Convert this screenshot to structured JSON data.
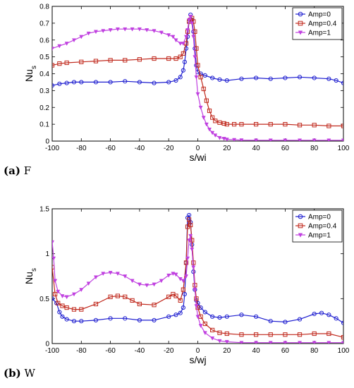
{
  "chart_data": [
    {
      "type": "line",
      "caption_label": "(a)",
      "caption_text": "F",
      "xlabel": "s/wi",
      "ylabel": "Nu",
      "ylabel_sub": "s",
      "xlim": [
        -100,
        100
      ],
      "ylim": [
        0,
        0.8
      ],
      "xticks": [
        -100,
        -80,
        -60,
        -40,
        -20,
        0,
        20,
        40,
        60,
        80,
        100
      ],
      "yticks": [
        0,
        0.1,
        0.2,
        0.3,
        0.4,
        0.5,
        0.6,
        0.7,
        0.8
      ],
      "ytick_labels": [
        "0",
        "0.1",
        "0.2",
        "0.3",
        "0.4",
        "0.5",
        "0.6",
        "0.7",
        "0.8"
      ],
      "legend_position": "top-right",
      "grid": false,
      "series": [
        {
          "name": "Amp=0",
          "color": "#1f1fd0",
          "marker": "circle",
          "x": [
            -100,
            -95,
            -90,
            -85,
            -80,
            -70,
            -60,
            -50,
            -40,
            -30,
            -20,
            -15,
            -12,
            -10,
            -9,
            -8,
            -7,
            -6,
            -5,
            -4,
            -3,
            -2,
            -1,
            0,
            2,
            5,
            10,
            15,
            20,
            30,
            40,
            50,
            60,
            70,
            80,
            90,
            95,
            100
          ],
          "y": [
            0.33,
            0.34,
            0.345,
            0.35,
            0.35,
            0.35,
            0.35,
            0.355,
            0.35,
            0.345,
            0.35,
            0.36,
            0.38,
            0.42,
            0.47,
            0.55,
            0.62,
            0.71,
            0.75,
            0.72,
            0.65,
            0.55,
            0.45,
            0.41,
            0.4,
            0.39,
            0.375,
            0.365,
            0.36,
            0.37,
            0.375,
            0.37,
            0.375,
            0.38,
            0.375,
            0.37,
            0.36,
            0.345
          ]
        },
        {
          "name": "Amp=0.4",
          "color": "#c0281c",
          "marker": "square",
          "x": [
            -100,
            -95,
            -90,
            -80,
            -70,
            -60,
            -50,
            -40,
            -30,
            -20,
            -15,
            -12,
            -10,
            -8,
            -7,
            -6,
            -5,
            -4,
            -3,
            -2,
            -1,
            0,
            2,
            4,
            6,
            8,
            10,
            12,
            15,
            18,
            20,
            25,
            30,
            40,
            50,
            60,
            70,
            80,
            90,
            100
          ],
          "y": [
            0.45,
            0.46,
            0.465,
            0.47,
            0.475,
            0.48,
            0.48,
            0.485,
            0.49,
            0.49,
            0.49,
            0.5,
            0.52,
            0.58,
            0.65,
            0.71,
            0.72,
            0.73,
            0.71,
            0.65,
            0.55,
            0.45,
            0.38,
            0.31,
            0.24,
            0.18,
            0.14,
            0.12,
            0.11,
            0.105,
            0.1,
            0.1,
            0.1,
            0.1,
            0.1,
            0.1,
            0.095,
            0.095,
            0.09,
            0.09
          ]
        },
        {
          "name": "Amp=1",
          "color": "#c040e0",
          "marker": "triangle-down",
          "x": [
            -100,
            -95,
            -90,
            -85,
            -80,
            -75,
            -70,
            -65,
            -60,
            -55,
            -50,
            -45,
            -40,
            -35,
            -30,
            -25,
            -20,
            -17,
            -15,
            -12,
            -10,
            -8,
            -7,
            -6,
            -5,
            -4,
            -3,
            -2,
            -1,
            0,
            2,
            4,
            6,
            8,
            10,
            12,
            15,
            18,
            20,
            25,
            30,
            40,
            50,
            60,
            70,
            80,
            90,
            100
          ],
          "y": [
            0.55,
            0.565,
            0.58,
            0.6,
            0.62,
            0.64,
            0.65,
            0.655,
            0.66,
            0.665,
            0.665,
            0.665,
            0.665,
            0.66,
            0.655,
            0.645,
            0.63,
            0.62,
            0.6,
            0.58,
            0.58,
            0.62,
            0.66,
            0.72,
            0.74,
            0.7,
            0.62,
            0.5,
            0.38,
            0.28,
            0.2,
            0.14,
            0.1,
            0.07,
            0.05,
            0.035,
            0.02,
            0.015,
            0.01,
            0.008,
            0.006,
            0.005,
            0.005,
            0.005,
            0.005,
            0.005,
            0.005,
            0.005
          ]
        }
      ]
    },
    {
      "type": "line",
      "caption_label": "(b)",
      "caption_text": "W",
      "xlabel": "s/wj",
      "ylabel": "Nu",
      "ylabel_sub": "s",
      "xlim": [
        -100,
        100
      ],
      "ylim": [
        0,
        1.5
      ],
      "xticks": [
        -100,
        -80,
        -60,
        -40,
        -20,
        0,
        20,
        40,
        60,
        80,
        100
      ],
      "yticks": [
        0,
        0.5,
        1,
        1.5
      ],
      "ytick_labels": [
        "0",
        "0.5",
        "1",
        "1.5"
      ],
      "legend_position": "top-right",
      "grid": false,
      "series": [
        {
          "name": "Amp=0",
          "color": "#1f1fd0",
          "marker": "circle",
          "x": [
            -100,
            -97,
            -95,
            -93,
            -90,
            -85,
            -80,
            -70,
            -60,
            -50,
            -40,
            -30,
            -20,
            -15,
            -12,
            -10,
            -9,
            -8,
            -7,
            -6,
            -5,
            -4,
            -3,
            -2,
            -1,
            0,
            2,
            5,
            10,
            15,
            20,
            30,
            40,
            50,
            60,
            70,
            80,
            85,
            90,
            95,
            100
          ],
          "y": [
            0.5,
            0.45,
            0.35,
            0.3,
            0.27,
            0.25,
            0.25,
            0.26,
            0.28,
            0.28,
            0.26,
            0.26,
            0.3,
            0.32,
            0.34,
            0.4,
            0.55,
            0.9,
            1.4,
            1.43,
            1.35,
            1.1,
            0.8,
            0.6,
            0.48,
            0.45,
            0.4,
            0.35,
            0.3,
            0.29,
            0.3,
            0.32,
            0.3,
            0.25,
            0.24,
            0.27,
            0.33,
            0.34,
            0.32,
            0.28,
            0.23
          ]
        },
        {
          "name": "Amp=0.4",
          "color": "#c0281c",
          "marker": "square",
          "x": [
            -100,
            -98,
            -96,
            -93,
            -90,
            -85,
            -80,
            -70,
            -60,
            -55,
            -50,
            -45,
            -40,
            -30,
            -20,
            -17,
            -15,
            -12,
            -10,
            -8,
            -7,
            -6,
            -5,
            -4,
            -3,
            -2,
            -1,
            0,
            2,
            5,
            10,
            15,
            20,
            30,
            40,
            50,
            60,
            70,
            80,
            90,
            100
          ],
          "y": [
            0.85,
            0.55,
            0.45,
            0.42,
            0.4,
            0.38,
            0.38,
            0.44,
            0.52,
            0.53,
            0.52,
            0.48,
            0.44,
            0.43,
            0.52,
            0.55,
            0.53,
            0.48,
            0.6,
            0.9,
            1.3,
            1.38,
            1.32,
            1.15,
            0.9,
            0.65,
            0.5,
            0.4,
            0.3,
            0.22,
            0.15,
            0.12,
            0.11,
            0.1,
            0.1,
            0.1,
            0.1,
            0.1,
            0.11,
            0.11,
            0.07
          ]
        },
        {
          "name": "Amp=1",
          "color": "#c040e0",
          "marker": "triangle-down",
          "x": [
            -100,
            -99,
            -98,
            -96,
            -93,
            -90,
            -85,
            -80,
            -75,
            -70,
            -65,
            -60,
            -55,
            -50,
            -45,
            -40,
            -35,
            -30,
            -25,
            -20,
            -17,
            -15,
            -12,
            -10,
            -8,
            -7,
            -6,
            -5,
            -4,
            -3,
            -2,
            -1,
            0,
            2,
            5,
            10,
            15,
            20,
            30,
            40,
            50,
            60,
            70,
            80,
            90,
            100
          ],
          "y": [
            1.13,
            0.95,
            0.7,
            0.58,
            0.53,
            0.52,
            0.55,
            0.6,
            0.67,
            0.74,
            0.78,
            0.79,
            0.78,
            0.75,
            0.7,
            0.66,
            0.65,
            0.66,
            0.7,
            0.76,
            0.78,
            0.77,
            0.72,
            0.7,
            0.75,
            0.95,
            1.15,
            1.2,
            1.05,
            0.85,
            0.6,
            0.42,
            0.3,
            0.2,
            0.12,
            0.06,
            0.03,
            0.02,
            0.01,
            0.01,
            0.01,
            0.01,
            0.01,
            0.01,
            0.01,
            0.01
          ]
        }
      ]
    }
  ]
}
